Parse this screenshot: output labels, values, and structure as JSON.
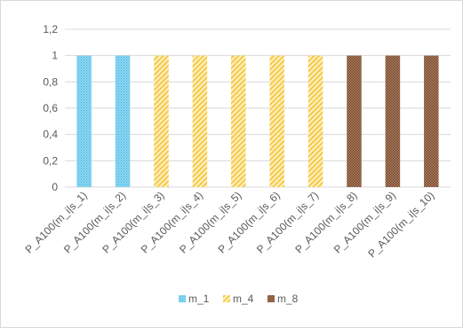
{
  "chart_data": {
    "type": "bar",
    "title": "",
    "xlabel": "",
    "ylabel": "",
    "categories": [
      "P_A100(m_i|s_1)",
      "P_A100(m_i|s_2)",
      "P_A100(m_i|s_3)",
      "P_A100(m_i|s_4)",
      "P_A100(m_i|s_5)",
      "P_A100(m_i|s_6)",
      "P_A100(m_i|s_7)",
      "P_A100(m_i|s_8)",
      "P_A100(m_i|s_9)",
      "P_A100(m_i|s_10)"
    ],
    "values": [
      1,
      1,
      1,
      1,
      1,
      1,
      1,
      1,
      1,
      1
    ],
    "bar_series": [
      "m_1",
      "m_1",
      "m_4",
      "m_4",
      "m_4",
      "m_4",
      "m_4",
      "m_8",
      "m_8",
      "m_8"
    ],
    "series": [
      {
        "name": "m_1",
        "color": "#5fc3e8",
        "pattern": "dotted-light"
      },
      {
        "name": "m_4",
        "color": "#ffd966",
        "pattern": "diagonal-stripes"
      },
      {
        "name": "m_8",
        "color": "#7f4f38",
        "pattern": "dotted-dark"
      }
    ],
    "ylim": [
      0,
      1.2
    ],
    "yticks": [
      "0",
      "0,2",
      "0,4",
      "0,6",
      "0,8",
      "1",
      "1,2"
    ],
    "grid": true,
    "legend_position": "bottom"
  }
}
